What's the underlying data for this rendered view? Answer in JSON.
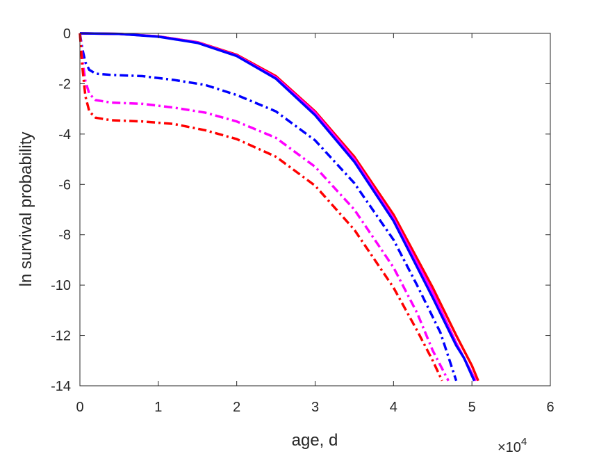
{
  "chart_data": {
    "type": "line",
    "title": "",
    "xlabel": "age, d",
    "ylabel": "ln survival probability",
    "x_exponent_label": "×10",
    "x_exponent_power": "4",
    "xlim": [
      0,
      60000
    ],
    "ylim": [
      -14,
      0
    ],
    "x_ticks": [
      0,
      10000,
      20000,
      30000,
      40000,
      50000,
      60000
    ],
    "x_tick_labels": [
      "0",
      "1",
      "2",
      "3",
      "4",
      "5",
      "6"
    ],
    "y_ticks": [
      0,
      -2,
      -4,
      -6,
      -8,
      -10,
      -12,
      -14
    ],
    "y_tick_labels": [
      "0",
      "-2",
      "-4",
      "-6",
      "-8",
      "-10",
      "-12",
      "-14"
    ],
    "grid": false,
    "legend": "none",
    "series": [
      {
        "color": "#ff0000",
        "style": "solid",
        "points": [
          [
            0,
            0
          ],
          [
            5000,
            -0.02
          ],
          [
            10000,
            -0.12
          ],
          [
            15000,
            -0.35
          ],
          [
            20000,
            -0.85
          ],
          [
            25000,
            -1.7
          ],
          [
            30000,
            -3.1
          ],
          [
            35000,
            -4.9
          ],
          [
            40000,
            -7.2
          ],
          [
            45000,
            -10.1
          ],
          [
            48000,
            -12.0
          ],
          [
            50000,
            -13.2
          ],
          [
            50800,
            -13.8
          ]
        ]
      },
      {
        "color": "#ff00ff",
        "style": "solid",
        "points": [
          [
            0,
            0
          ],
          [
            5000,
            -0.02
          ],
          [
            10000,
            -0.12
          ],
          [
            15000,
            -0.36
          ],
          [
            20000,
            -0.88
          ],
          [
            25000,
            -1.75
          ],
          [
            30000,
            -3.15
          ],
          [
            35000,
            -5.0
          ],
          [
            40000,
            -7.35
          ],
          [
            45000,
            -10.3
          ],
          [
            48000,
            -12.3
          ],
          [
            50000,
            -13.5
          ],
          [
            50500,
            -13.8
          ]
        ]
      },
      {
        "color": "#0000ff",
        "style": "solid",
        "points": [
          [
            0,
            0
          ],
          [
            5000,
            -0.02
          ],
          [
            10000,
            -0.13
          ],
          [
            15000,
            -0.38
          ],
          [
            20000,
            -0.9
          ],
          [
            25000,
            -1.8
          ],
          [
            30000,
            -3.25
          ],
          [
            35000,
            -5.1
          ],
          [
            40000,
            -7.45
          ],
          [
            45000,
            -10.5
          ],
          [
            48000,
            -12.4
          ],
          [
            49000,
            -12.9
          ],
          [
            50000,
            -13.6
          ],
          [
            50300,
            -13.8
          ]
        ]
      },
      {
        "color": "#0000ff",
        "style": "dashdot",
        "points": [
          [
            0,
            0
          ],
          [
            300,
            -0.6
          ],
          [
            700,
            -1.15
          ],
          [
            1200,
            -1.45
          ],
          [
            2000,
            -1.6
          ],
          [
            4000,
            -1.65
          ],
          [
            8000,
            -1.7
          ],
          [
            12000,
            -1.85
          ],
          [
            16000,
            -2.05
          ],
          [
            20000,
            -2.45
          ],
          [
            25000,
            -3.1
          ],
          [
            30000,
            -4.25
          ],
          [
            35000,
            -5.95
          ],
          [
            40000,
            -8.2
          ],
          [
            43000,
            -10.0
          ],
          [
            46000,
            -11.9
          ],
          [
            48000,
            -13.8
          ]
        ]
      },
      {
        "color": "#ff00ff",
        "style": "dashdot",
        "points": [
          [
            0,
            0
          ],
          [
            300,
            -1.0
          ],
          [
            700,
            -1.9
          ],
          [
            1200,
            -2.4
          ],
          [
            2000,
            -2.65
          ],
          [
            4000,
            -2.75
          ],
          [
            8000,
            -2.8
          ],
          [
            12000,
            -2.95
          ],
          [
            16000,
            -3.15
          ],
          [
            20000,
            -3.5
          ],
          [
            25000,
            -4.15
          ],
          [
            30000,
            -5.3
          ],
          [
            35000,
            -7.0
          ],
          [
            40000,
            -9.3
          ],
          [
            43000,
            -11.1
          ],
          [
            45000,
            -12.6
          ],
          [
            47000,
            -13.8
          ]
        ]
      },
      {
        "color": "#ff0000",
        "style": "dashdot",
        "points": [
          [
            0,
            0
          ],
          [
            300,
            -1.3
          ],
          [
            700,
            -2.5
          ],
          [
            1200,
            -3.1
          ],
          [
            2000,
            -3.35
          ],
          [
            4000,
            -3.45
          ],
          [
            8000,
            -3.5
          ],
          [
            12000,
            -3.6
          ],
          [
            16000,
            -3.85
          ],
          [
            20000,
            -4.2
          ],
          [
            25000,
            -4.9
          ],
          [
            30000,
            -6.05
          ],
          [
            35000,
            -7.8
          ],
          [
            40000,
            -10.1
          ],
          [
            43000,
            -11.8
          ],
          [
            45000,
            -13.0
          ],
          [
            46200,
            -13.8
          ]
        ]
      }
    ]
  }
}
